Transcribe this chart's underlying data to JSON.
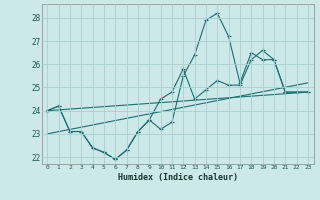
{
  "xlabel": "Humidex (Indice chaleur)",
  "xlim": [
    -0.5,
    23.5
  ],
  "ylim": [
    21.7,
    28.6
  ],
  "yticks": [
    22,
    23,
    24,
    25,
    26,
    27,
    28
  ],
  "xticks": [
    0,
    1,
    2,
    3,
    4,
    5,
    6,
    7,
    8,
    9,
    10,
    11,
    12,
    13,
    14,
    15,
    16,
    17,
    18,
    19,
    20,
    21,
    22,
    23
  ],
  "background_color": "#cce8e8",
  "grid_color": "#aad0d0",
  "line_color": "#1a7070",
  "line1_x": [
    0,
    1,
    2,
    3,
    4,
    5,
    6,
    7,
    8,
    9,
    10,
    11,
    12,
    13,
    14,
    15,
    16,
    17,
    18,
    19,
    20,
    21,
    22,
    23
  ],
  "line1_y": [
    24.0,
    24.2,
    23.1,
    23.1,
    22.4,
    22.2,
    21.9,
    22.3,
    23.1,
    23.6,
    23.2,
    23.5,
    25.5,
    26.4,
    27.9,
    28.2,
    27.2,
    25.2,
    26.5,
    26.2,
    26.2,
    24.8,
    24.8,
    24.8
  ],
  "line2_x": [
    0,
    1,
    2,
    3,
    4,
    5,
    6,
    7,
    8,
    9,
    10,
    11,
    12,
    13,
    14,
    15,
    16,
    17,
    18,
    19,
    20,
    21,
    22,
    23
  ],
  "line2_y": [
    24.0,
    24.2,
    23.1,
    23.1,
    22.4,
    22.2,
    21.9,
    22.3,
    23.1,
    23.6,
    24.5,
    24.8,
    25.8,
    24.5,
    24.9,
    25.3,
    25.1,
    25.1,
    26.2,
    26.6,
    26.2,
    24.8,
    24.8,
    24.8
  ],
  "line3_x": [
    0,
    23
  ],
  "line3_y": [
    24.0,
    24.8
  ],
  "line4_x": [
    0,
    23
  ],
  "line4_y": [
    23.0,
    25.2
  ]
}
